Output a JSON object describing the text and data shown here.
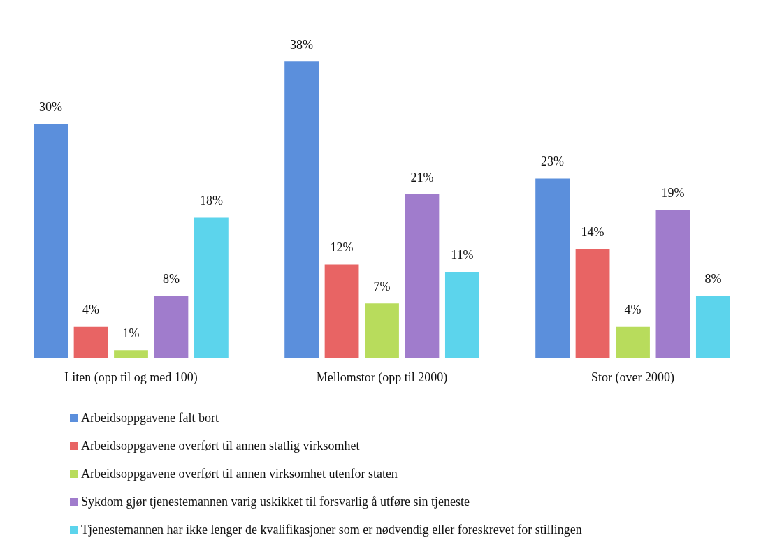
{
  "chart_data": {
    "type": "bar",
    "categories": [
      "Liten (opp til og med 100)",
      "Mellomstor (opp til 2000)",
      "Stor (over 2000)"
    ],
    "series": [
      {
        "name": "Arbeidsoppgavene falt bort",
        "color": "#5b8fdc",
        "values": [
          30,
          38,
          23
        ],
        "value_labels": [
          "30%",
          "38%",
          "23%"
        ]
      },
      {
        "name": "Arbeidsoppgavene overført til annen statlig virksomhet",
        "color": "#e86464",
        "values": [
          4,
          12,
          14
        ],
        "value_labels": [
          "4%",
          "12%",
          "14%"
        ]
      },
      {
        "name": "Arbeidsoppgavene overført til annen virksomhet utenfor staten",
        "color": "#b8dc5c",
        "values": [
          1,
          7,
          4
        ],
        "value_labels": [
          "1%",
          "7%",
          "4%"
        ]
      },
      {
        "name": "Sykdom gjør tjenestemannen varig uskikket til forsvarlig å utføre sin tjeneste",
        "color": "#a07ccc",
        "values": [
          8,
          21,
          19
        ],
        "value_labels": [
          "8%",
          "21%",
          "19%"
        ]
      },
      {
        "name": "Tjenestemannen har ikke lenger de kvalifikasjoner som er nødvendig eller foreskrevet for stillingen",
        "color": "#5cd4ec",
        "values": [
          18,
          11,
          8
        ],
        "value_labels": [
          "18%",
          "11%",
          "8%"
        ]
      }
    ],
    "legend": "bottom"
  }
}
